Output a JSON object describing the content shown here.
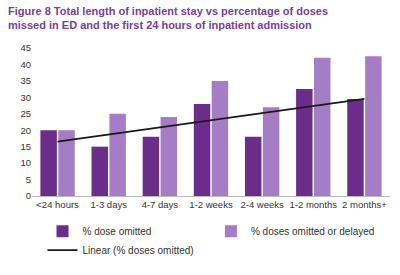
{
  "chart_data": {
    "type": "bar",
    "title": "Figure 8 Total length of inpatient stay vs percentage of doses missed in ED and the first 24 hours of inpatient admission",
    "categories": [
      "<24 hours",
      "1-3 days",
      "4-7 days",
      "1-2 weeks",
      "2-4 weeks",
      "1-2 months",
      "2 months+"
    ],
    "series": [
      {
        "name": "% dose omitted",
        "type": "bar",
        "color": "#6b2c8a",
        "values": [
          20,
          15,
          18,
          28,
          18,
          32.5,
          29.5
        ]
      },
      {
        "name": "% doses omitted or delayed",
        "type": "bar",
        "color": "#a57dc4",
        "values": [
          20,
          25,
          24,
          35,
          27,
          42,
          42.5
        ]
      },
      {
        "name": "Linear (% doses omitted)",
        "type": "line",
        "color": "#1a1a1a",
        "line_style": "solid",
        "values": [
          16.5,
          18.7,
          20.8,
          23,
          25.2,
          27.3,
          29.5
        ]
      }
    ],
    "ylim": [
      0,
      45
    ],
    "yticks": [
      0,
      5,
      10,
      15,
      20,
      25,
      30,
      35,
      40,
      45
    ],
    "grid": false,
    "legend": "bottom"
  }
}
